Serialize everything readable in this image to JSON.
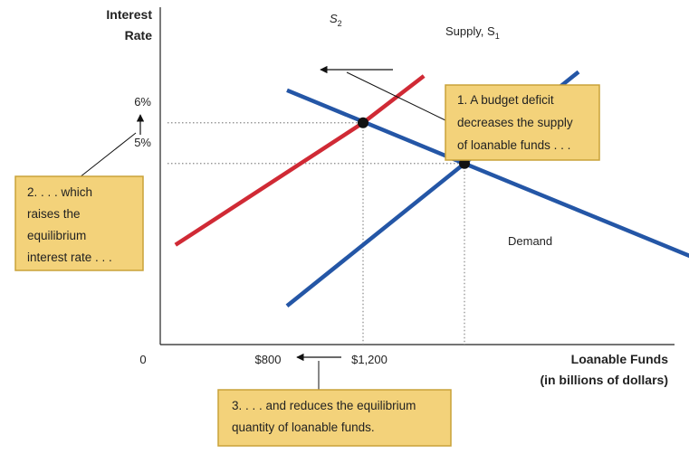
{
  "chart_data": {
    "type": "line",
    "title": "",
    "ylabel": [
      "Interest",
      "Rate"
    ],
    "xlabel": [
      "Loanable Funds",
      "(in billions of dollars)"
    ],
    "origin_label": "0",
    "y_ticks": [
      "6%",
      "5%"
    ],
    "x_ticks": [
      "$800",
      "$1,200"
    ],
    "series": [
      {
        "name": "Demand",
        "label": "Demand",
        "color": "#2456a6",
        "points": [
          [
            500,
            6.8
          ],
          [
            1200,
            5.0
          ],
          [
            2100,
            2.7
          ]
        ]
      },
      {
        "name": "Supply, S1",
        "label": "Supply, S",
        "label_sub": "1",
        "color": "#2456a6",
        "points": [
          [
            500,
            1.5
          ],
          [
            1200,
            5.0
          ],
          [
            1650,
            7.25
          ]
        ]
      },
      {
        "name": "S2",
        "label": "S",
        "label_sub": "2",
        "color": "#d02a35",
        "points": [
          [
            60,
            3.0
          ],
          [
            800,
            6.0
          ],
          [
            1040,
            7.15
          ]
        ]
      }
    ],
    "equilibria": [
      {
        "x": 800,
        "y": 6.0
      },
      {
        "x": 1200,
        "y": 5.0
      }
    ],
    "annotations": [
      {
        "id": "budget-deficit",
        "lines": [
          "1. A budget deficit",
          "decreases the supply",
          "of loanable funds . . ."
        ]
      },
      {
        "id": "raises-rate",
        "lines": [
          "2. . . . which",
          "raises the",
          "equilibrium",
          "interest rate . . ."
        ]
      },
      {
        "id": "reduces-quantity",
        "lines": [
          "3. . . . and reduces the equilibrium",
          "quantity of loanable funds."
        ]
      }
    ],
    "colors": {
      "supply_demand": "#2456a6",
      "shifted_supply": "#d02a35",
      "note_fill": "#f3d27a",
      "note_border": "#c9a239"
    }
  }
}
